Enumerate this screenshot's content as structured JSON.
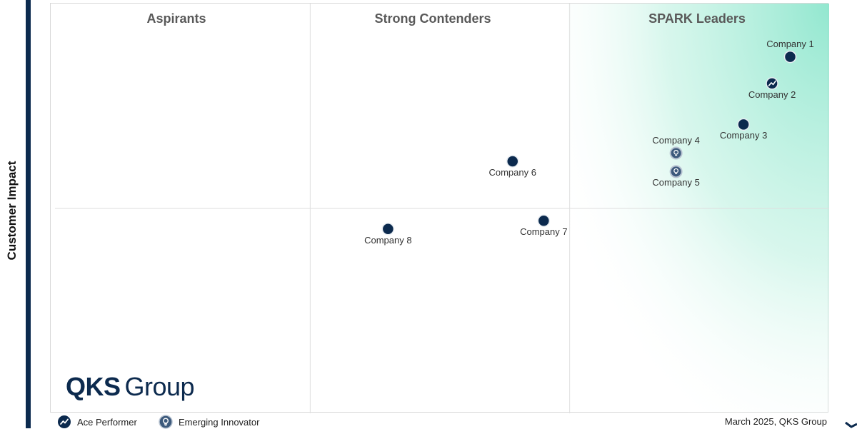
{
  "chart_data": {
    "type": "scatter",
    "ylabel": "Customer Impact",
    "quadrants": [
      "Aspirants",
      "Strong Contenders",
      "SPARK Leaders"
    ],
    "xlim": [
      0,
      3
    ],
    "ylim": [
      0,
      2
    ],
    "points": [
      {
        "label": "Company 1",
        "x": 2.85,
        "y": 1.74,
        "marker": "plain",
        "label_pos": "above"
      },
      {
        "label": "Company 2",
        "x": 2.78,
        "y": 1.61,
        "marker": "ace",
        "label_pos": "below"
      },
      {
        "label": "Company 3",
        "x": 2.67,
        "y": 1.41,
        "marker": "plain",
        "label_pos": "below"
      },
      {
        "label": "Company 4",
        "x": 2.41,
        "y": 1.27,
        "marker": "innovator",
        "label_pos": "above"
      },
      {
        "label": "Company 5",
        "x": 2.41,
        "y": 1.18,
        "marker": "innovator",
        "label_pos": "below"
      },
      {
        "label": "Company 6",
        "x": 1.78,
        "y": 1.23,
        "marker": "plain",
        "label_pos": "below"
      },
      {
        "label": "Company 7",
        "x": 1.9,
        "y": 0.94,
        "marker": "plain",
        "label_pos": "below"
      },
      {
        "label": "Company 8",
        "x": 1.3,
        "y": 0.9,
        "marker": "plain",
        "label_pos": "below"
      }
    ],
    "grid": true
  },
  "legend": {
    "ace_label": "Ace Performer",
    "innovator_label": "Emerging Innovator"
  },
  "logo": {
    "bold": "QKS",
    "light": "Group"
  },
  "footer": {
    "note": "March 2025, QKS Group"
  },
  "colors": {
    "marker": "#0c2a4e",
    "innovator_marker": "#3d5a7c",
    "leaders_gradient": "#7fe3c7",
    "axis_bar": "#0c2a4e"
  },
  "icons": {
    "ace": "trend-up-icon",
    "innovator": "lightbulb-icon"
  }
}
